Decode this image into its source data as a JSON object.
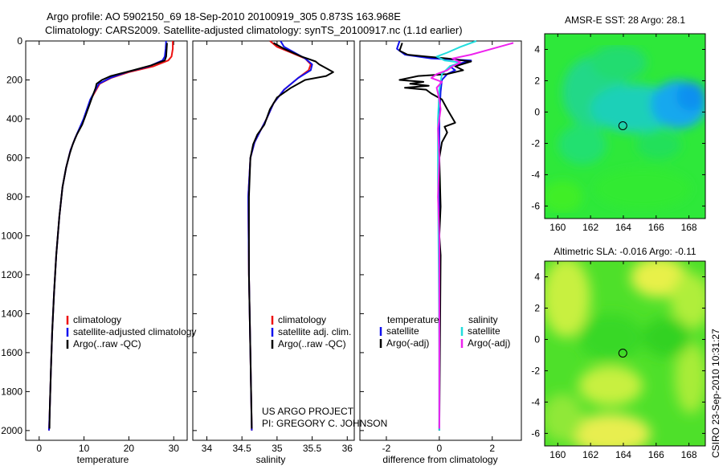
{
  "header": {
    "line1": "Argo profile: AO 5902150_69 18-Sep-2010 20100919_305 0.873S 163.968E",
    "line2": "Climatology: CARS2009. Satellite-adjusted climatology: synTS_20100917.nc (1.1d earlier)"
  },
  "footer": {
    "project": "US ARGO PROJECT",
    "pi": "PI: GREGORY C. JOHNSON",
    "stamp": "CSIRO 23-Sep-2010 10:31:27"
  },
  "colors": {
    "climatology": "#ee1111",
    "satellite": "#1111ee",
    "argo": "#000000",
    "salinity_satellite": "#22dddd",
    "salinity_argo": "#ee22ee",
    "map_marker": "#000000"
  },
  "chart_data": [
    {
      "id": "temperature",
      "type": "line",
      "xlabel": "temperature",
      "xlim": [
        -3,
        33
      ],
      "ylim": [
        2050,
        0
      ],
      "xticks": [
        0,
        10,
        20,
        30
      ],
      "yticks": [
        0,
        200,
        400,
        600,
        800,
        1000,
        1200,
        1400,
        1600,
        1800,
        2000
      ],
      "legend": [
        "climatology",
        "satellite-adjusted climatology",
        "Argo(..raw -QC)"
      ],
      "series": [
        {
          "name": "climatology",
          "color": "climatology",
          "points": [
            [
              29.8,
              0
            ],
            [
              29.8,
              40
            ],
            [
              29.5,
              80
            ],
            [
              28.8,
              100
            ],
            [
              25.5,
              130
            ],
            [
              20,
              160
            ],
            [
              16,
              190
            ],
            [
              13.5,
              220
            ],
            [
              11.5,
              300
            ],
            [
              10,
              400
            ],
            [
              8,
              500
            ],
            [
              7,
              560
            ],
            [
              6,
              650
            ],
            [
              5.2,
              750
            ],
            [
              4.5,
              900
            ],
            [
              3.8,
              1100
            ],
            [
              3.3,
              1300
            ],
            [
              2.9,
              1500
            ],
            [
              2.6,
              1700
            ],
            [
              2.35,
              1900
            ],
            [
              2.2,
              2000
            ]
          ]
        },
        {
          "name": "satellite",
          "color": "satellite",
          "points": [
            [
              28.3,
              0
            ],
            [
              28.2,
              40
            ],
            [
              28,
              80
            ],
            [
              27.5,
              100
            ],
            [
              24.5,
              130
            ],
            [
              19.5,
              160
            ],
            [
              15.8,
              190
            ],
            [
              13.3,
              220
            ],
            [
              11.4,
              300
            ],
            [
              9.9,
              400
            ],
            [
              8,
              500
            ],
            [
              7,
              560
            ],
            [
              6,
              650
            ],
            [
              5.2,
              750
            ],
            [
              4.5,
              900
            ],
            [
              3.8,
              1100
            ],
            [
              3.3,
              1300
            ],
            [
              2.9,
              1500
            ],
            [
              2.6,
              1700
            ],
            [
              2.35,
              1900
            ],
            [
              2.2,
              2000
            ]
          ]
        },
        {
          "name": "argo",
          "color": "argo",
          "points": [
            [
              28.5,
              10
            ],
            [
              28.4,
              50
            ],
            [
              28.3,
              80
            ],
            [
              28,
              100
            ],
            [
              25,
              125
            ],
            [
              21,
              150
            ],
            [
              16,
              180
            ],
            [
              14,
              200
            ],
            [
              12.8,
              220
            ],
            [
              12.6,
              240
            ],
            [
              11.8,
              290
            ],
            [
              10.4,
              380
            ],
            [
              9.6,
              430
            ],
            [
              8.4,
              480
            ],
            [
              7.5,
              530
            ],
            [
              6.8,
              580
            ],
            [
              6,
              650
            ],
            [
              5.2,
              750
            ],
            [
              4.5,
              900
            ],
            [
              3.8,
              1100
            ],
            [
              3.3,
              1300
            ],
            [
              2.9,
              1500
            ],
            [
              2.6,
              1700
            ],
            [
              2.35,
              1900
            ],
            [
              2.3,
              1990
            ]
          ]
        }
      ]
    },
    {
      "id": "salinity",
      "type": "line",
      "xlabel": "salinity",
      "xlim": [
        33.8,
        36.1
      ],
      "ylim": [
        2050,
        0
      ],
      "xticks": [
        34,
        34.5,
        35,
        35.5,
        36
      ],
      "yticks": [
        0,
        200,
        400,
        600,
        800,
        1000,
        1200,
        1400,
        1600,
        1800,
        2000
      ],
      "legend": [
        "climatology",
        "satellite adj. clim.",
        "Argo(..raw -QC)"
      ],
      "series": [
        {
          "name": "climatology",
          "color": "climatology",
          "points": [
            [
              34.9,
              0
            ],
            [
              35.0,
              30
            ],
            [
              35.2,
              60
            ],
            [
              35.4,
              90
            ],
            [
              35.48,
              120
            ],
            [
              35.45,
              150
            ],
            [
              35.3,
              190
            ],
            [
              35.1,
              250
            ],
            [
              34.95,
              320
            ],
            [
              34.85,
              400
            ],
            [
              34.75,
              470
            ],
            [
              34.68,
              520
            ],
            [
              34.62,
              600
            ],
            [
              34.59,
              800
            ],
            [
              34.6,
              1200
            ],
            [
              34.62,
              1600
            ],
            [
              34.64,
              2000
            ]
          ]
        },
        {
          "name": "satellite",
          "color": "satellite",
          "points": [
            [
              35.05,
              0
            ],
            [
              35.1,
              30
            ],
            [
              35.25,
              60
            ],
            [
              35.4,
              90
            ],
            [
              35.5,
              120
            ],
            [
              35.48,
              150
            ],
            [
              35.3,
              190
            ],
            [
              35.1,
              250
            ],
            [
              34.95,
              320
            ],
            [
              34.85,
              400
            ],
            [
              34.75,
              470
            ],
            [
              34.68,
              520
            ],
            [
              34.62,
              600
            ],
            [
              34.59,
              800
            ],
            [
              34.6,
              1200
            ],
            [
              34.62,
              1600
            ],
            [
              34.64,
              2000
            ]
          ]
        },
        {
          "name": "argo",
          "color": "argo",
          "points": [
            [
              34.95,
              10
            ],
            [
              35.1,
              40
            ],
            [
              35.35,
              80
            ],
            [
              35.55,
              105
            ],
            [
              35.6,
              120
            ],
            [
              35.7,
              140
            ],
            [
              35.8,
              160
            ],
            [
              35.7,
              180
            ],
            [
              35.4,
              200
            ],
            [
              35.2,
              240
            ],
            [
              35.0,
              290
            ],
            [
              34.9,
              350
            ],
            [
              34.82,
              430
            ],
            [
              34.72,
              480
            ],
            [
              34.66,
              530
            ],
            [
              34.62,
              600
            ],
            [
              34.6,
              800
            ],
            [
              34.6,
              1200
            ],
            [
              34.62,
              1600
            ],
            [
              34.64,
              1990
            ]
          ]
        }
      ]
    },
    {
      "id": "difference",
      "type": "line",
      "xlabel": "difference from climatology",
      "xlim": [
        -3,
        3.1
      ],
      "ylim": [
        2050,
        0
      ],
      "xticks": [
        -2,
        0,
        2
      ],
      "yticks": [
        0,
        200,
        400,
        600,
        800,
        1000,
        1200,
        1400,
        1600,
        1800,
        2000
      ],
      "legend_left_title": "temperature",
      "legend_right_title": "salinity",
      "legend": [
        "satellite",
        "Argo(-adj)",
        "satellite",
        "Argo(-adj)"
      ],
      "series": [
        {
          "name": "temperature satellite",
          "color": "satellite",
          "points": [
            [
              -1.5,
              0
            ],
            [
              -1.6,
              40
            ],
            [
              -1.3,
              70
            ],
            [
              -0.8,
              80
            ],
            [
              -0.3,
              90
            ],
            [
              0.5,
              95
            ],
            [
              1.2,
              100
            ],
            [
              0.8,
              115
            ],
            [
              0.4,
              130
            ],
            [
              0.6,
              150
            ],
            [
              0.3,
              170
            ],
            [
              0.1,
              200
            ],
            [
              0.05,
              260
            ],
            [
              0,
              400
            ],
            [
              0,
              2000
            ]
          ]
        },
        {
          "name": "temperature argo",
          "color": "argo",
          "points": [
            [
              -1.4,
              10
            ],
            [
              -1.5,
              50
            ],
            [
              -1.2,
              70
            ],
            [
              -0.5,
              80
            ],
            [
              0.3,
              90
            ],
            [
              1.2,
              105
            ],
            [
              0.6,
              130
            ],
            [
              0.9,
              150
            ],
            [
              0.3,
              170
            ],
            [
              -0.8,
              180
            ],
            [
              -1.5,
              200
            ],
            [
              -0.6,
              210
            ],
            [
              -1.1,
              220
            ],
            [
              -0.4,
              230
            ],
            [
              -1.3,
              240
            ],
            [
              -0.5,
              250
            ],
            [
              -0.3,
              270
            ],
            [
              0.1,
              300
            ],
            [
              0.3,
              350
            ],
            [
              0.6,
              420
            ],
            [
              0.2,
              440
            ],
            [
              0.3,
              470
            ],
            [
              0.1,
              520
            ],
            [
              0,
              600
            ],
            [
              0.05,
              850
            ],
            [
              0,
              1000
            ],
            [
              0.05,
              1100
            ],
            [
              0,
              2000
            ]
          ]
        },
        {
          "name": "salinity satellite",
          "color": "salinity_satellite",
          "points": [
            [
              1.4,
              0
            ],
            [
              0.8,
              30
            ],
            [
              0.3,
              60
            ],
            [
              -0.1,
              80
            ],
            [
              0.2,
              100
            ],
            [
              0.8,
              110
            ],
            [
              0.4,
              130
            ],
            [
              0.1,
              170
            ],
            [
              0,
              250
            ],
            [
              -0.05,
              400
            ],
            [
              -0.05,
              700
            ],
            [
              -0.02,
              1200
            ],
            [
              0,
              1600
            ],
            [
              0,
              2000
            ]
          ]
        },
        {
          "name": "salinity argo",
          "color": "salinity_argo",
          "points": [
            [
              2.8,
              10
            ],
            [
              2,
              40
            ],
            [
              1.2,
              70
            ],
            [
              0.5,
              90
            ],
            [
              0.8,
              110
            ],
            [
              0.5,
              130
            ],
            [
              0.3,
              150
            ],
            [
              -0.1,
              170
            ],
            [
              -0.3,
              190
            ],
            [
              0.1,
              210
            ],
            [
              -0.1,
              240
            ],
            [
              0,
              300
            ],
            [
              0.05,
              350
            ],
            [
              -0.05,
              450
            ],
            [
              0,
              600
            ],
            [
              -0.05,
              800
            ],
            [
              0,
              1000
            ],
            [
              0,
              1400
            ],
            [
              0,
              1800
            ],
            [
              0,
              1990
            ]
          ]
        }
      ]
    },
    {
      "id": "sst-map",
      "type": "heatmap",
      "title": "AMSR-E SST: 28 Argo: 28.1",
      "xlim": [
        159.2,
        169
      ],
      "ylim": [
        -6.8,
        5
      ],
      "xticks": [
        160,
        162,
        164,
        166,
        168
      ],
      "yticks": [
        4,
        2,
        0,
        -2,
        -4,
        -6
      ],
      "marker": [
        163.968,
        -0.873
      ]
    },
    {
      "id": "sla-map",
      "type": "heatmap",
      "title": "Altimetric SLA: -0.016 Argo: -0.11",
      "xlim": [
        159.2,
        169
      ],
      "ylim": [
        -6.8,
        5
      ],
      "xticks": [
        160,
        162,
        164,
        166,
        168
      ],
      "yticks": [
        4,
        2,
        0,
        -2,
        -4,
        -6
      ],
      "marker": [
        163.968,
        -0.873
      ]
    }
  ]
}
